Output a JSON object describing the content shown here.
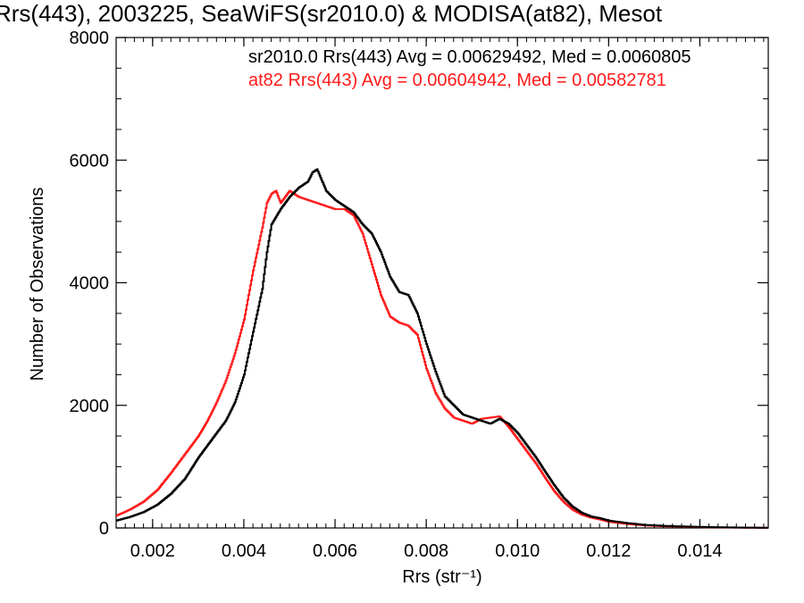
{
  "chart_data": {
    "type": "line",
    "title": "Rrs(443), 2003225, SeaWiFS(sr2010.0) & MODISA(at82), Mesot",
    "xlabel": "Rrs (str⁻¹)",
    "ylabel": "Number of Observations",
    "xlim": [
      0.0012,
      0.0155
    ],
    "ylim": [
      0,
      8000
    ],
    "xticks": [
      0.002,
      0.004,
      0.006,
      0.008,
      0.01,
      0.012,
      0.014
    ],
    "xtick_labels": [
      "0.002",
      "0.004",
      "0.006",
      "0.008",
      "0.010",
      "0.012",
      "0.014"
    ],
    "yticks": [
      0,
      2000,
      4000,
      6000,
      8000
    ],
    "ytick_labels": [
      "0",
      "2000",
      "4000",
      "6000",
      "8000"
    ],
    "grid": false,
    "legend_position": "top-right",
    "series": [
      {
        "name": "sr2010.0",
        "label": "sr2010.0 Rrs(443) Avg = 0.00629492, Med = 0.0060805",
        "color": "#000000",
        "step": true,
        "points": [
          [
            0.0012,
            120
          ],
          [
            0.0015,
            180
          ],
          [
            0.0018,
            260
          ],
          [
            0.0021,
            380
          ],
          [
            0.0024,
            560
          ],
          [
            0.0027,
            800
          ],
          [
            0.003,
            1150
          ],
          [
            0.0033,
            1450
          ],
          [
            0.0036,
            1750
          ],
          [
            0.0038,
            2050
          ],
          [
            0.004,
            2500
          ],
          [
            0.0042,
            3200
          ],
          [
            0.0044,
            3900
          ],
          [
            0.0045,
            4500
          ],
          [
            0.0046,
            4950
          ],
          [
            0.0048,
            5200
          ],
          [
            0.005,
            5400
          ],
          [
            0.0052,
            5550
          ],
          [
            0.0054,
            5650
          ],
          [
            0.0055,
            5800
          ],
          [
            0.0056,
            5850
          ],
          [
            0.0058,
            5500
          ],
          [
            0.006,
            5350
          ],
          [
            0.0062,
            5250
          ],
          [
            0.0064,
            5150
          ],
          [
            0.0066,
            4950
          ],
          [
            0.0068,
            4800
          ],
          [
            0.007,
            4500
          ],
          [
            0.0072,
            4100
          ],
          [
            0.0074,
            3850
          ],
          [
            0.0076,
            3800
          ],
          [
            0.0078,
            3500
          ],
          [
            0.008,
            3000
          ],
          [
            0.0082,
            2550
          ],
          [
            0.0084,
            2150
          ],
          [
            0.0086,
            2000
          ],
          [
            0.0088,
            1850
          ],
          [
            0.009,
            1800
          ],
          [
            0.0092,
            1750
          ],
          [
            0.0094,
            1700
          ],
          [
            0.0096,
            1780
          ],
          [
            0.0098,
            1700
          ],
          [
            0.01,
            1550
          ],
          [
            0.0102,
            1350
          ],
          [
            0.0104,
            1150
          ],
          [
            0.0106,
            920
          ],
          [
            0.0108,
            700
          ],
          [
            0.011,
            500
          ],
          [
            0.0112,
            350
          ],
          [
            0.0114,
            250
          ],
          [
            0.0116,
            190
          ],
          [
            0.0118,
            160
          ],
          [
            0.012,
            120
          ],
          [
            0.0124,
            80
          ],
          [
            0.0128,
            50
          ],
          [
            0.0132,
            35
          ],
          [
            0.0136,
            25
          ],
          [
            0.014,
            18
          ],
          [
            0.0145,
            10
          ],
          [
            0.015,
            6
          ],
          [
            0.0155,
            4
          ]
        ]
      },
      {
        "name": "at82",
        "label": "at82 Rrs(443) Avg = 0.00604942, Med = 0.00582781",
        "color": "#ff1a1a",
        "step": true,
        "points": [
          [
            0.0012,
            200
          ],
          [
            0.0015,
            300
          ],
          [
            0.0018,
            430
          ],
          [
            0.0021,
            620
          ],
          [
            0.0024,
            900
          ],
          [
            0.0027,
            1200
          ],
          [
            0.003,
            1500
          ],
          [
            0.0032,
            1750
          ],
          [
            0.0034,
            2050
          ],
          [
            0.0036,
            2400
          ],
          [
            0.0038,
            2850
          ],
          [
            0.004,
            3400
          ],
          [
            0.0042,
            4200
          ],
          [
            0.0044,
            4900
          ],
          [
            0.0045,
            5300
          ],
          [
            0.0046,
            5450
          ],
          [
            0.0047,
            5500
          ],
          [
            0.0048,
            5300
          ],
          [
            0.005,
            5500
          ],
          [
            0.0052,
            5400
          ],
          [
            0.0054,
            5350
          ],
          [
            0.0056,
            5300
          ],
          [
            0.0058,
            5250
          ],
          [
            0.006,
            5200
          ],
          [
            0.0062,
            5200
          ],
          [
            0.0064,
            5100
          ],
          [
            0.0066,
            4800
          ],
          [
            0.0068,
            4300
          ],
          [
            0.007,
            3800
          ],
          [
            0.0072,
            3450
          ],
          [
            0.0074,
            3350
          ],
          [
            0.0076,
            3300
          ],
          [
            0.0078,
            3150
          ],
          [
            0.008,
            2600
          ],
          [
            0.0082,
            2200
          ],
          [
            0.0084,
            1950
          ],
          [
            0.0086,
            1800
          ],
          [
            0.0088,
            1750
          ],
          [
            0.009,
            1700
          ],
          [
            0.0092,
            1780
          ],
          [
            0.0094,
            1800
          ],
          [
            0.0096,
            1820
          ],
          [
            0.0098,
            1650
          ],
          [
            0.01,
            1450
          ],
          [
            0.0102,
            1250
          ],
          [
            0.0104,
            1050
          ],
          [
            0.0106,
            820
          ],
          [
            0.0108,
            600
          ],
          [
            0.011,
            430
          ],
          [
            0.0112,
            300
          ],
          [
            0.0114,
            220
          ],
          [
            0.0116,
            170
          ],
          [
            0.0118,
            140
          ],
          [
            0.012,
            100
          ],
          [
            0.0124,
            65
          ],
          [
            0.0128,
            40
          ],
          [
            0.0132,
            28
          ],
          [
            0.0136,
            20
          ],
          [
            0.014,
            14
          ],
          [
            0.0145,
            8
          ],
          [
            0.015,
            5
          ],
          [
            0.0155,
            3
          ]
        ]
      }
    ]
  }
}
